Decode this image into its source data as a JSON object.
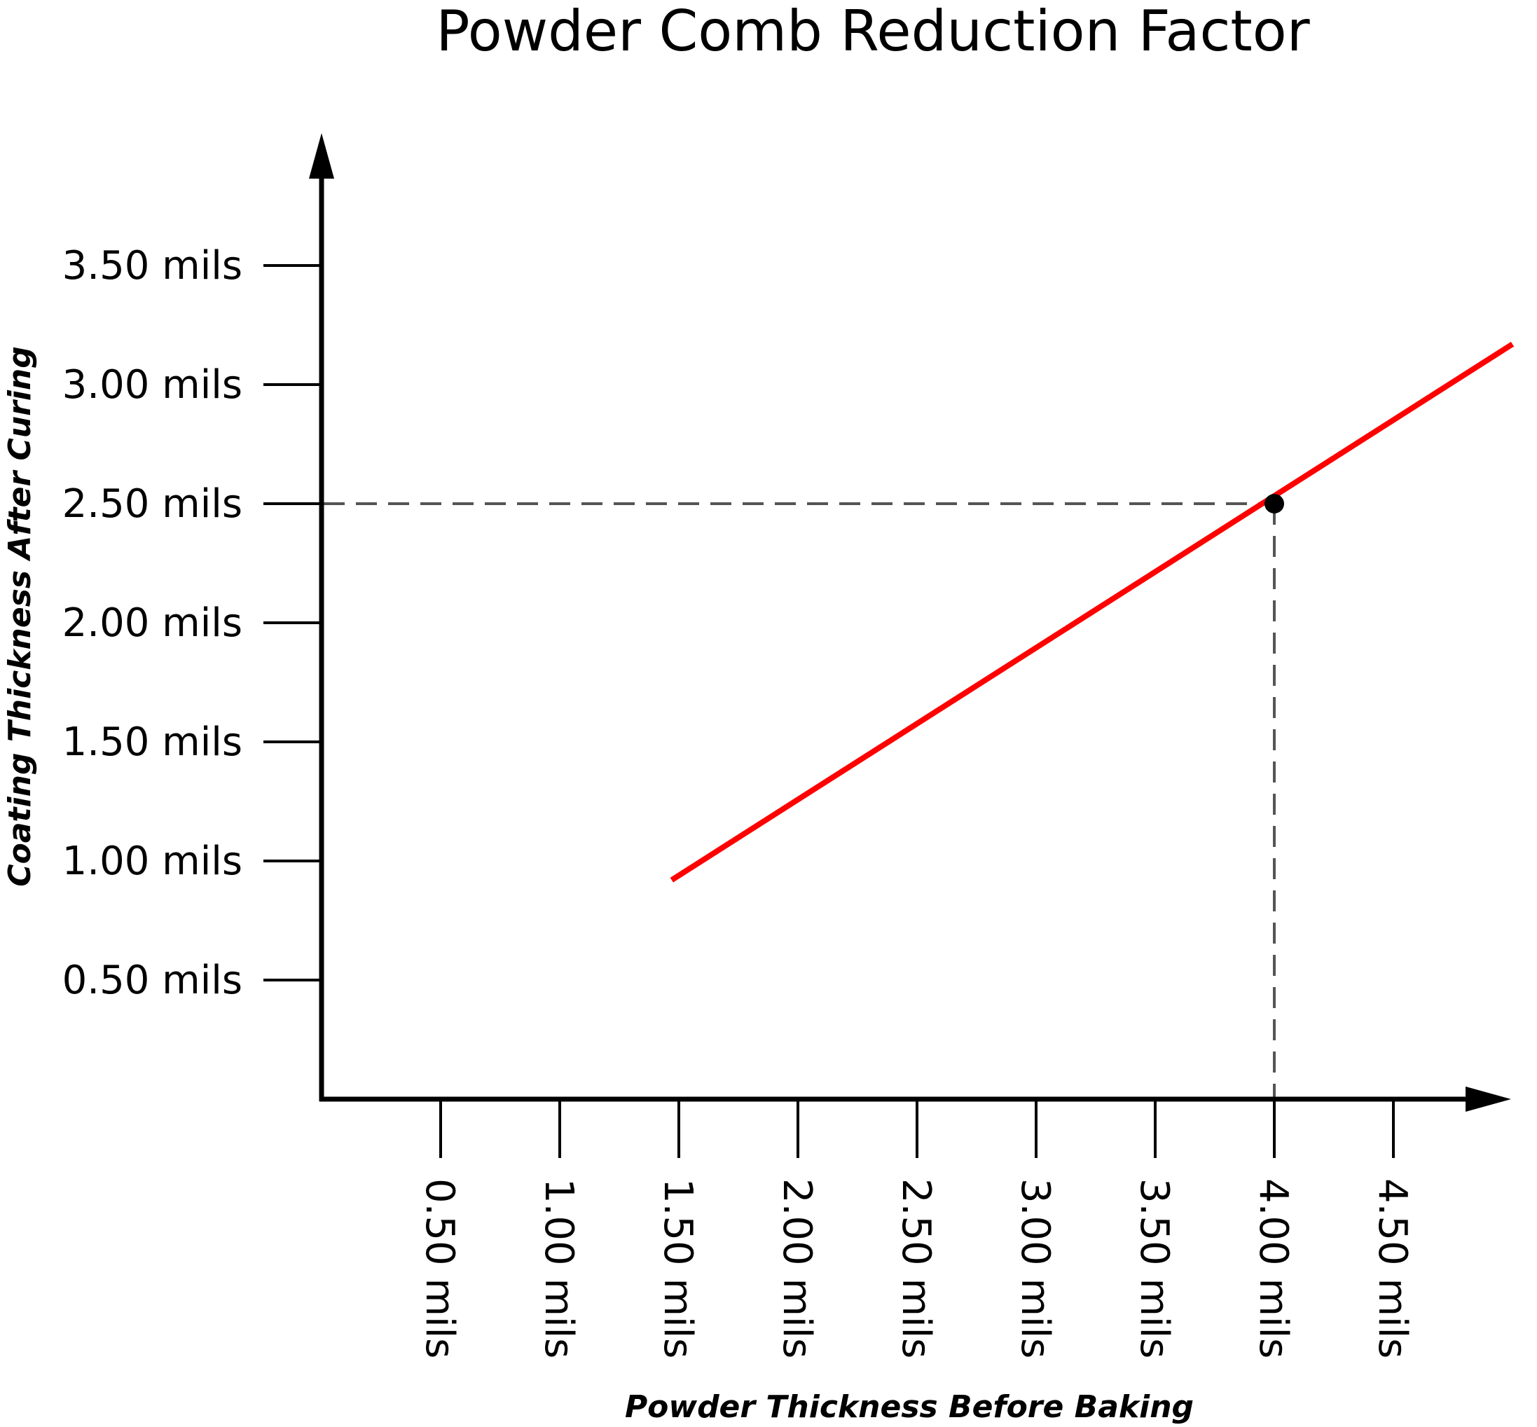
{
  "chart_data": {
    "type": "line",
    "title": "Powder Comb Reduction Factor",
    "xlabel": "Powder Thickness Before Baking",
    "ylabel": "Coating Thickness After Curing",
    "xlim": [
      0,
      5.0
    ],
    "ylim": [
      0,
      4.0
    ],
    "x_ticks": [
      0.5,
      1.0,
      1.5,
      2.0,
      2.5,
      3.0,
      3.5,
      4.0,
      4.5
    ],
    "x_tick_labels": [
      "0.50 mils",
      "1.00 mils",
      "1.50 mils",
      "2.00 mils",
      "2.50 mils",
      "3.00 mils",
      "3.50 mils",
      "4.00 mils",
      "4.50 mils"
    ],
    "y_ticks": [
      0.5,
      1.0,
      1.5,
      2.0,
      2.5,
      3.0,
      3.5
    ],
    "y_tick_labels": [
      "0.50 mils",
      "1.00 mils",
      "1.50 mils",
      "2.00 mils",
      "2.50 mils",
      "3.00 mils",
      "3.50 mils"
    ],
    "grid": false,
    "series": [
      {
        "x": [
          1.47,
          5.0
        ],
        "y": [
          0.92,
          3.17
        ],
        "color": "#ff0000"
      }
    ],
    "highlight_point": {
      "x": 4.0,
      "y": 2.5,
      "color": "#000000",
      "guide_color": "#555555",
      "guide_style": "dashed"
    },
    "axis_color": "#000000"
  }
}
